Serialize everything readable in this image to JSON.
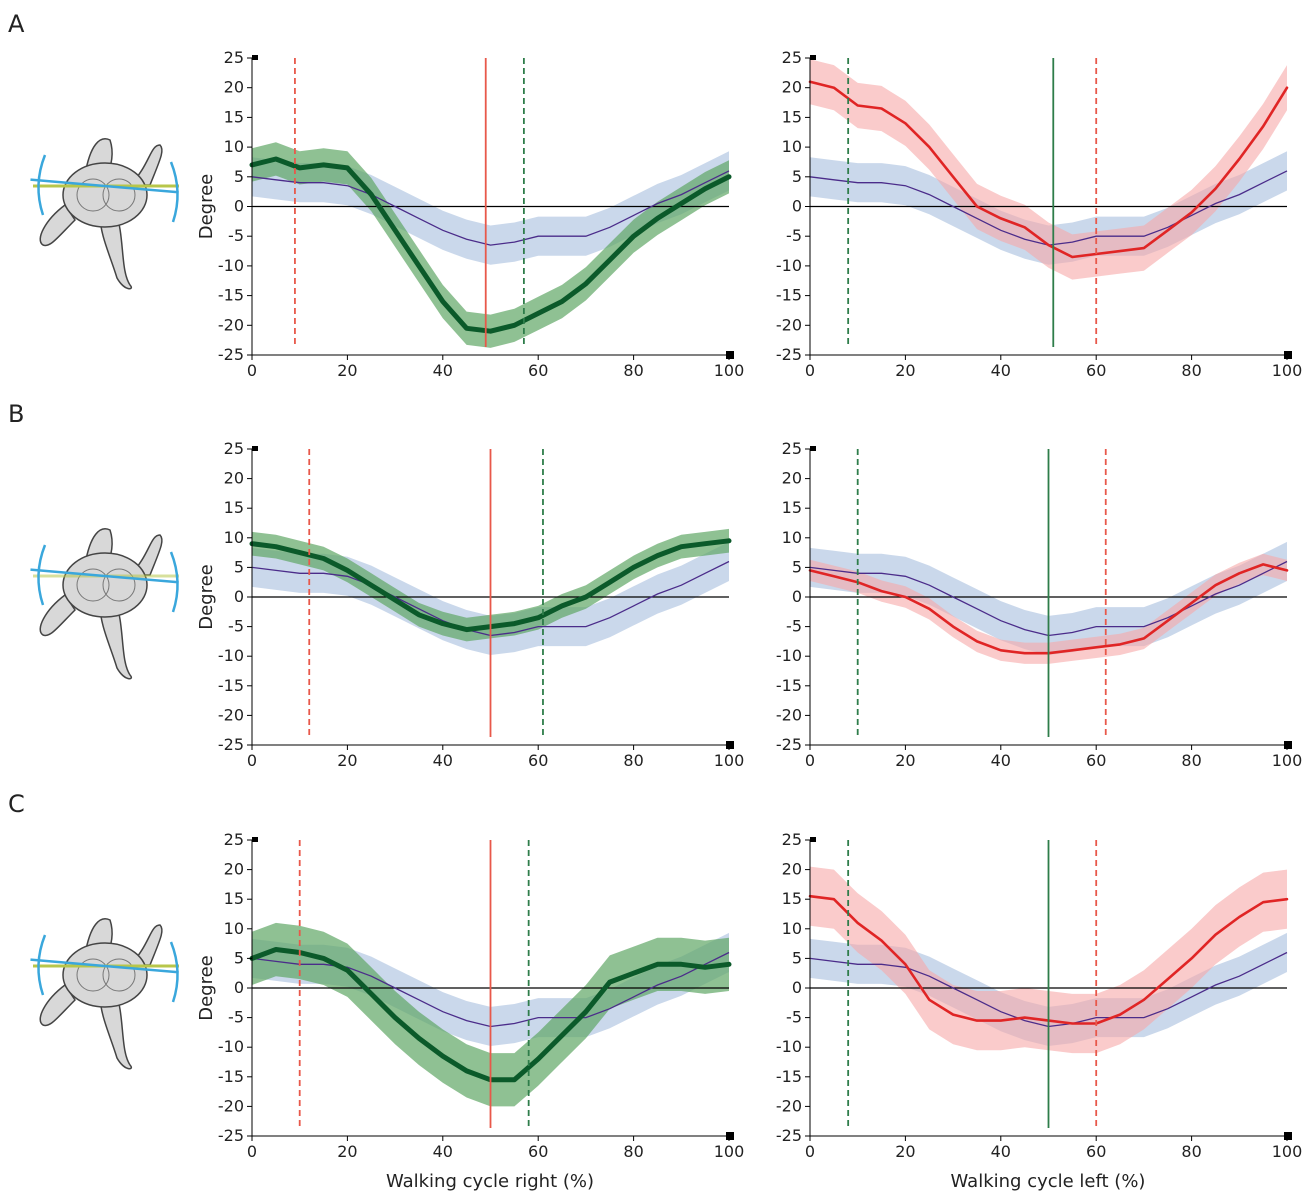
{
  "figure": {
    "panel_letters": [
      "A",
      "B",
      "C"
    ],
    "ylabel": "Degree",
    "xlabels": [
      "Walking cycle right (%)",
      "Walking cycle left (%)"
    ],
    "y_ticks": [
      25,
      20,
      15,
      10,
      5,
      0,
      -5,
      -10,
      -15,
      -20,
      -25
    ],
    "x_ticks": [
      0,
      20,
      40,
      60,
      80,
      100
    ],
    "xlim": [
      0,
      100
    ],
    "ylim": [
      -25,
      25
    ],
    "colors": {
      "right_line": "#0b5a2a",
      "right_band": "#5fa765",
      "left_line": "#e02525",
      "left_band": "#f7a8a8",
      "normal_line": "#4b2c8a",
      "normal_band": "#b8cbe4",
      "stance_red": "#e8584a",
      "stance_green": "#2e7d4a",
      "zero_line": "#000000",
      "icon_body": "#d8d8d8",
      "icon_blue": "#3aa7dc",
      "icon_yellow": "#b7c64a"
    },
    "icon": "pelvis-rotation-icon"
  },
  "chart_data": [
    {
      "panel": "A",
      "side": "right",
      "type": "line",
      "xlabel": "",
      "ylabel": "Degree",
      "xlim": [
        0,
        100
      ],
      "ylim": [
        -25,
        25
      ],
      "x": [
        0,
        5,
        10,
        15,
        20,
        25,
        30,
        35,
        40,
        45,
        50,
        55,
        60,
        65,
        70,
        75,
        80,
        85,
        90,
        95,
        100
      ],
      "series": [
        {
          "values": [
            7,
            8,
            6.5,
            7,
            6.5,
            2,
            -4,
            -10,
            -16,
            -20.5,
            -21,
            -20,
            -18,
            -16,
            -13,
            -9,
            -5,
            -2,
            0.5,
            3,
            5
          ],
          "band": 2.8
        },
        {
          "values": [
            5,
            4.5,
            4,
            4,
            3.5,
            2,
            0,
            -2,
            -4,
            -5.5,
            -6.5,
            -6,
            -5,
            -5,
            -5,
            -3.5,
            -1.5,
            0.5,
            2,
            4,
            6
          ],
          "band": 3.3
        }
      ],
      "vlines": [
        {
          "x": 9,
          "style": "dashed",
          "color": "red"
        },
        {
          "x": 49,
          "style": "solid",
          "color": "red"
        },
        {
          "x": 57,
          "style": "dashed",
          "color": "green"
        }
      ]
    },
    {
      "panel": "A",
      "side": "left",
      "type": "line",
      "xlabel": "",
      "ylabel": "",
      "xlim": [
        0,
        100
      ],
      "ylim": [
        -25,
        25
      ],
      "x": [
        0,
        5,
        10,
        15,
        20,
        25,
        30,
        35,
        40,
        45,
        50,
        55,
        60,
        65,
        70,
        75,
        80,
        85,
        90,
        95,
        100
      ],
      "series": [
        {
          "values": [
            21,
            20,
            17,
            16.5,
            14,
            10,
            5,
            0,
            -2,
            -3.5,
            -6.5,
            -8.5,
            -8,
            -7.5,
            -7,
            -4,
            -1,
            3,
            8,
            13.5,
            20
          ],
          "band": 3.8
        },
        {
          "values": [
            5,
            4.5,
            4,
            4,
            3.5,
            2,
            0,
            -2,
            -4,
            -5.5,
            -6.5,
            -6,
            -5,
            -5,
            -5,
            -3.5,
            -1.5,
            0.5,
            2,
            4,
            6
          ],
          "band": 3.3
        }
      ],
      "vlines": [
        {
          "x": 8,
          "style": "dashed",
          "color": "green"
        },
        {
          "x": 51,
          "style": "solid",
          "color": "green"
        },
        {
          "x": 60,
          "style": "dashed",
          "color": "red"
        }
      ]
    },
    {
      "panel": "B",
      "side": "right",
      "type": "line",
      "xlabel": "",
      "ylabel": "Degree",
      "xlim": [
        0,
        100
      ],
      "ylim": [
        -25,
        25
      ],
      "x": [
        0,
        5,
        10,
        15,
        20,
        25,
        30,
        35,
        40,
        45,
        50,
        55,
        60,
        65,
        70,
        75,
        80,
        85,
        90,
        95,
        100
      ],
      "series": [
        {
          "values": [
            9,
            8.5,
            7.5,
            6.5,
            4.5,
            2,
            -0.5,
            -3,
            -4.5,
            -5.5,
            -5,
            -4.5,
            -3.5,
            -1.5,
            0,
            2.5,
            5,
            7,
            8.5,
            9,
            9.5
          ],
          "band": 2
        },
        {
          "values": [
            5,
            4.5,
            4,
            4,
            3.5,
            2,
            0,
            -2,
            -4,
            -5.5,
            -6.5,
            -6,
            -5,
            -5,
            -5,
            -3.5,
            -1.5,
            0.5,
            2,
            4,
            6
          ],
          "band": 3.3
        }
      ],
      "vlines": [
        {
          "x": 12,
          "style": "dashed",
          "color": "red"
        },
        {
          "x": 50,
          "style": "solid",
          "color": "red"
        },
        {
          "x": 61,
          "style": "dashed",
          "color": "green"
        }
      ]
    },
    {
      "panel": "B",
      "side": "left",
      "type": "line",
      "xlabel": "",
      "ylabel": "",
      "xlim": [
        0,
        100
      ],
      "ylim": [
        -25,
        25
      ],
      "x": [
        0,
        5,
        10,
        15,
        20,
        25,
        30,
        35,
        40,
        45,
        50,
        55,
        60,
        65,
        70,
        75,
        80,
        85,
        90,
        95,
        100
      ],
      "series": [
        {
          "values": [
            4.5,
            3.5,
            2.5,
            1,
            0,
            -2,
            -5,
            -7.5,
            -9,
            -9.5,
            -9.5,
            -9,
            -8.5,
            -8,
            -7,
            -4,
            -1,
            2,
            4,
            5.5,
            4.5
          ],
          "band": 1.8
        },
        {
          "values": [
            5,
            4.5,
            4,
            4,
            3.5,
            2,
            0,
            -2,
            -4,
            -5.5,
            -6.5,
            -6,
            -5,
            -5,
            -5,
            -3.5,
            -1.5,
            0.5,
            2,
            4,
            6
          ],
          "band": 3.3
        }
      ],
      "vlines": [
        {
          "x": 10,
          "style": "dashed",
          "color": "green"
        },
        {
          "x": 50,
          "style": "solid",
          "color": "green"
        },
        {
          "x": 62,
          "style": "dashed",
          "color": "red"
        }
      ]
    },
    {
      "panel": "C",
      "side": "right",
      "type": "line",
      "xlabel": "Walking cycle right (%)",
      "ylabel": "Degree",
      "xlim": [
        0,
        100
      ],
      "ylim": [
        -25,
        25
      ],
      "x": [
        0,
        5,
        10,
        15,
        20,
        25,
        30,
        35,
        40,
        45,
        50,
        55,
        60,
        65,
        70,
        75,
        80,
        85,
        90,
        95,
        100
      ],
      "series": [
        {
          "values": [
            5,
            6.5,
            6,
            5,
            3,
            -1,
            -5,
            -8.5,
            -11.5,
            -14,
            -15.5,
            -15.5,
            -12,
            -8,
            -4,
            1,
            2.5,
            4,
            4,
            3.5,
            4
          ],
          "band": 4.5
        },
        {
          "values": [
            5,
            4.5,
            4,
            4,
            3.5,
            2,
            0,
            -2,
            -4,
            -5.5,
            -6.5,
            -6,
            -5,
            -5,
            -5,
            -3.5,
            -1.5,
            0.5,
            2,
            4,
            6
          ],
          "band": 3.3
        }
      ],
      "vlines": [
        {
          "x": 10,
          "style": "dashed",
          "color": "red"
        },
        {
          "x": 50,
          "style": "solid",
          "color": "red"
        },
        {
          "x": 58,
          "style": "dashed",
          "color": "green"
        }
      ]
    },
    {
      "panel": "C",
      "side": "left",
      "type": "line",
      "xlabel": "Walking cycle left (%)",
      "ylabel": "",
      "xlim": [
        0,
        100
      ],
      "ylim": [
        -25,
        25
      ],
      "x": [
        0,
        5,
        10,
        15,
        20,
        25,
        30,
        35,
        40,
        45,
        50,
        55,
        60,
        65,
        70,
        75,
        80,
        85,
        90,
        95,
        100
      ],
      "series": [
        {
          "values": [
            15.5,
            15,
            11,
            8,
            4,
            -2,
            -4.5,
            -5.5,
            -5.5,
            -5,
            -5.5,
            -6,
            -6,
            -4.5,
            -2,
            1.5,
            5,
            9,
            12,
            14.5,
            15
          ],
          "band": 5
        },
        {
          "values": [
            5,
            4.5,
            4,
            4,
            3.5,
            2,
            0,
            -2,
            -4,
            -5.5,
            -6.5,
            -6,
            -5,
            -5,
            -5,
            -3.5,
            -1.5,
            0.5,
            2,
            4,
            6
          ],
          "band": 3.3
        }
      ],
      "vlines": [
        {
          "x": 8,
          "style": "dashed",
          "color": "green"
        },
        {
          "x": 50,
          "style": "solid",
          "color": "green"
        },
        {
          "x": 60,
          "style": "dashed",
          "color": "red"
        }
      ]
    }
  ]
}
